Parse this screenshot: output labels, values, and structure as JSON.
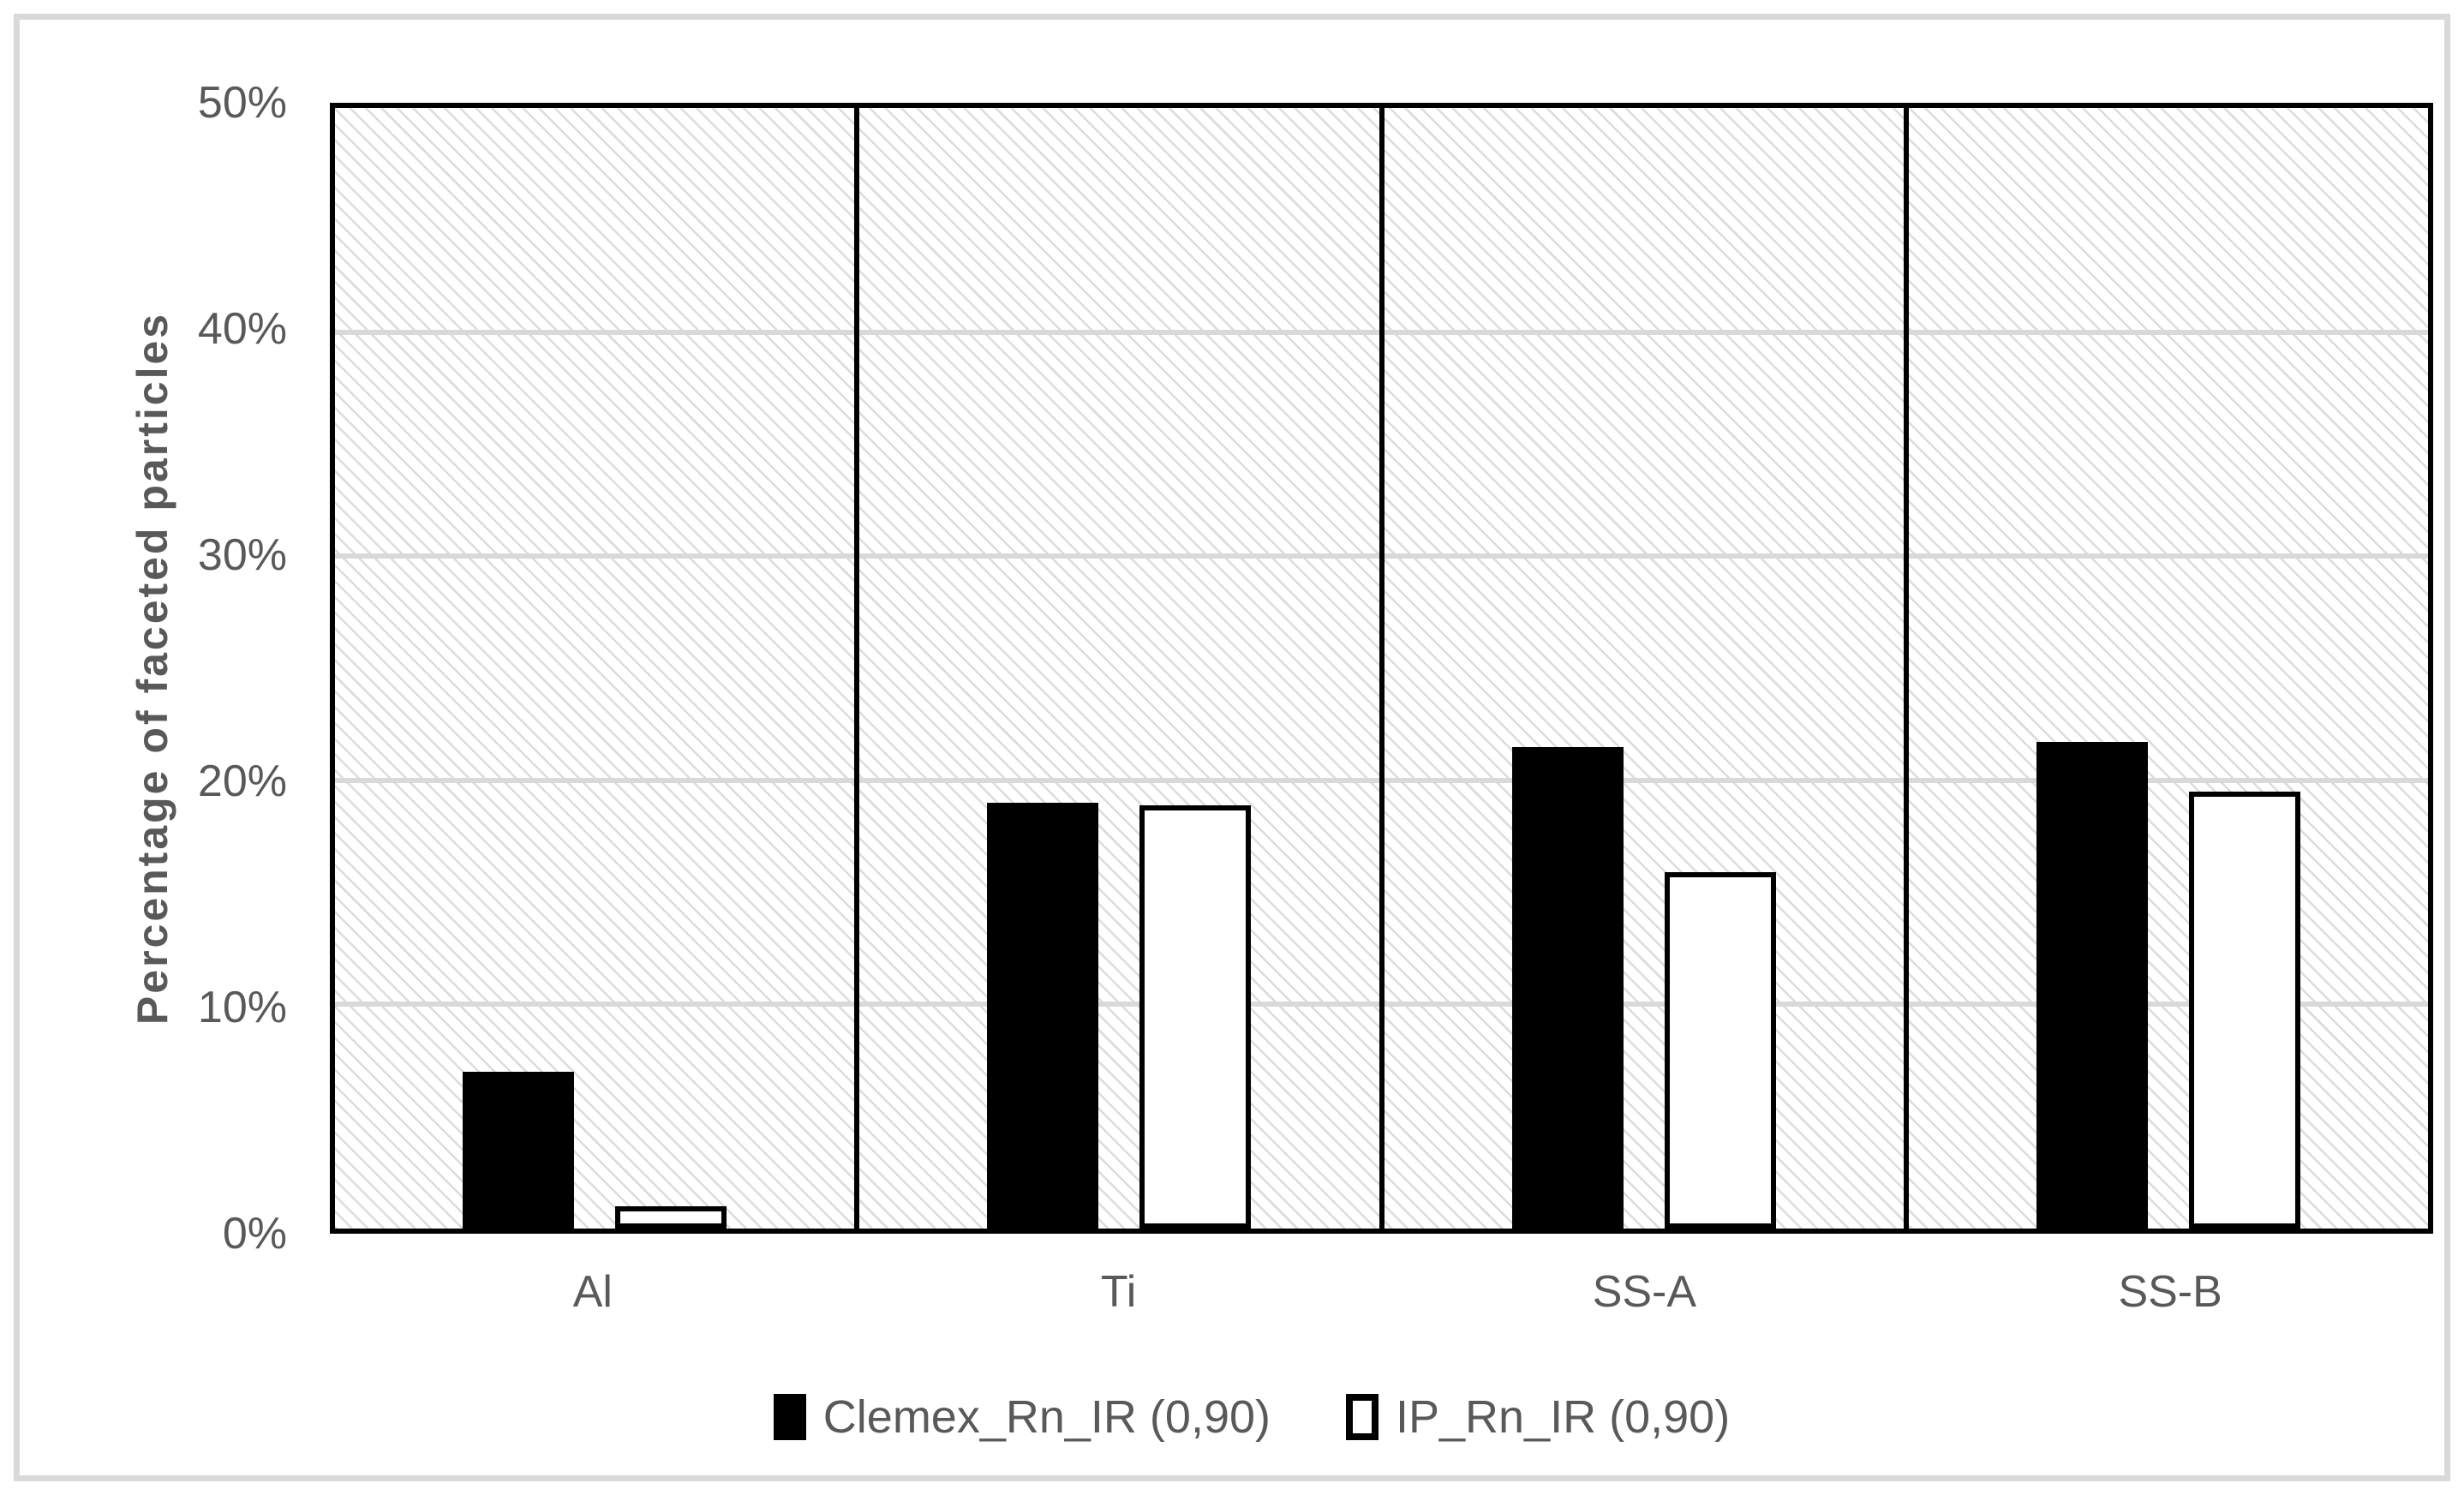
{
  "chart_data": {
    "type": "bar",
    "title": "",
    "xlabel": "",
    "ylabel": "Percentage of faceted particles",
    "categories": [
      "Al",
      "Ti",
      "SS-A",
      "SS-B"
    ],
    "series": [
      {
        "name": "Clemex_Rn_IR (0,90)",
        "style": "filled",
        "fill": "#000000",
        "values": [
          7.0,
          19.0,
          21.5,
          21.7
        ]
      },
      {
        "name": "IP_Rn_IR (0,90)",
        "style": "outlined",
        "fill": "#ffffff",
        "values": [
          1.0,
          18.9,
          15.9,
          19.5
        ]
      }
    ],
    "ylim": [
      0,
      50
    ],
    "ytick_step": 10,
    "ytick_suffix": "%",
    "grid": "horizontal-gridlines-on",
    "panel_separators": "vertical-black-lines-between-categories",
    "plot_background": "light-gray-downward-diagonal-hatch",
    "legend_position": "bottom",
    "colors": {
      "text": "#595959",
      "gridline": "#d9d9d9",
      "frame_border": "#d9d9d9",
      "bar_fill": "#000000",
      "bar_outline": "#000000",
      "hatch": "#dadada"
    }
  }
}
